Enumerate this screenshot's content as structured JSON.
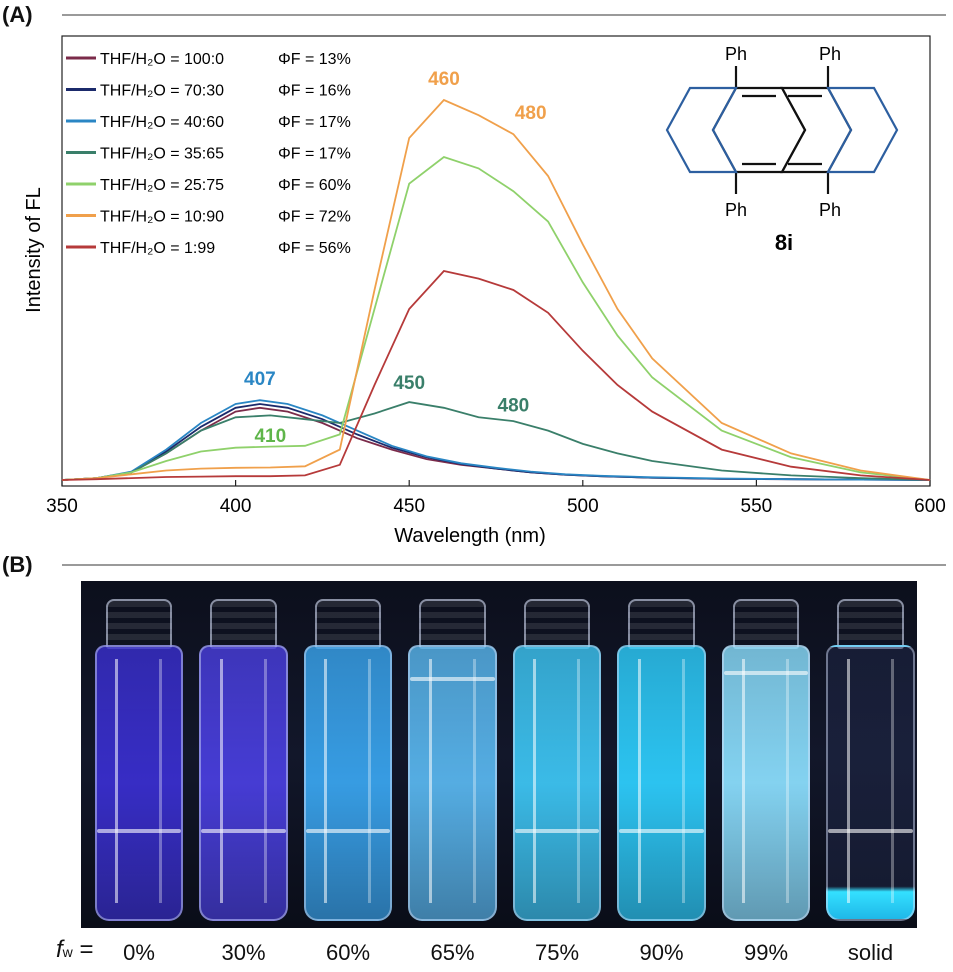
{
  "panel_a_label": "(A)",
  "panel_b_label": "(B)",
  "chart_data": {
    "type": "line",
    "xlabel": "Wavelength (nm)",
    "ylabel": "Intensity of FL",
    "xlim": [
      350,
      600
    ],
    "ylim": [
      0,
      1
    ],
    "x_ticks": [
      350,
      400,
      450,
      500,
      550,
      600
    ],
    "series": [
      {
        "name": "THF/H₂O = 100:0",
        "phi": "ΦF = 13%",
        "color": "#7b2b4a",
        "x": [
          350,
          360,
          370,
          380,
          390,
          400,
          407,
          415,
          425,
          435,
          445,
          455,
          465,
          475,
          485,
          495,
          505,
          520,
          540,
          560,
          580,
          600
        ],
        "y": [
          0.0,
          0.005,
          0.02,
          0.07,
          0.13,
          0.18,
          0.19,
          0.18,
          0.15,
          0.11,
          0.08,
          0.055,
          0.04,
          0.03,
          0.02,
          0.014,
          0.01,
          0.006,
          0.003,
          0.002,
          0.001,
          0.0
        ]
      },
      {
        "name": "THF/H₂O =  70:30",
        "phi": "ΦF = 16%",
        "color": "#1b2a6b",
        "x": [
          350,
          360,
          370,
          380,
          390,
          400,
          407,
          415,
          425,
          435,
          445,
          455,
          465,
          475,
          485,
          495,
          505,
          520,
          540,
          560,
          580,
          600
        ],
        "y": [
          0.0,
          0.005,
          0.02,
          0.075,
          0.14,
          0.19,
          0.2,
          0.19,
          0.16,
          0.12,
          0.085,
          0.06,
          0.042,
          0.03,
          0.02,
          0.014,
          0.01,
          0.006,
          0.003,
          0.002,
          0.001,
          0.0
        ]
      },
      {
        "name": "THF/H₂O =  40:60",
        "phi": "ΦF = 17%",
        "color": "#2a86c4",
        "x": [
          350,
          360,
          370,
          380,
          390,
          400,
          407,
          415,
          425,
          435,
          445,
          455,
          465,
          475,
          485,
          495,
          505,
          520,
          540,
          560,
          580,
          600
        ],
        "y": [
          0.0,
          0.005,
          0.022,
          0.08,
          0.15,
          0.2,
          0.21,
          0.2,
          0.17,
          0.13,
          0.09,
          0.062,
          0.044,
          0.032,
          0.022,
          0.015,
          0.011,
          0.007,
          0.004,
          0.002,
          0.001,
          0.0
        ]
      },
      {
        "name": "THF/H₂O =  35:65",
        "phi": "ΦF = 17%",
        "color": "#3a7f6a",
        "x": [
          350,
          360,
          370,
          380,
          390,
          400,
          410,
          420,
          430,
          440,
          450,
          460,
          470,
          480,
          490,
          500,
          510,
          520,
          540,
          560,
          580,
          600
        ],
        "y": [
          0.0,
          0.005,
          0.02,
          0.07,
          0.13,
          0.165,
          0.17,
          0.16,
          0.15,
          0.175,
          0.205,
          0.19,
          0.165,
          0.155,
          0.13,
          0.095,
          0.07,
          0.05,
          0.025,
          0.012,
          0.005,
          0.0
        ]
      },
      {
        "name": "THF/H₂O =  25:75",
        "phi": "ΦF = 60%",
        "color": "#8fd16b",
        "x": [
          350,
          360,
          370,
          380,
          390,
          400,
          410,
          420,
          430,
          440,
          450,
          460,
          470,
          480,
          490,
          500,
          510,
          520,
          540,
          560,
          580,
          600
        ],
        "y": [
          0.0,
          0.005,
          0.02,
          0.05,
          0.075,
          0.085,
          0.088,
          0.09,
          0.12,
          0.45,
          0.78,
          0.85,
          0.82,
          0.76,
          0.68,
          0.52,
          0.38,
          0.27,
          0.13,
          0.06,
          0.02,
          0.0
        ]
      },
      {
        "name": "THF/H₂O =  10:90",
        "phi": "ΦF = 72%",
        "color": "#f0a04b",
        "x": [
          350,
          360,
          370,
          380,
          390,
          400,
          410,
          420,
          430,
          440,
          450,
          460,
          470,
          480,
          490,
          500,
          510,
          520,
          540,
          560,
          580,
          600
        ],
        "y": [
          0.0,
          0.005,
          0.015,
          0.025,
          0.03,
          0.032,
          0.033,
          0.036,
          0.08,
          0.5,
          0.9,
          1.0,
          0.96,
          0.91,
          0.8,
          0.62,
          0.45,
          0.32,
          0.15,
          0.07,
          0.025,
          0.0
        ]
      },
      {
        "name": "THF/H₂O =    1:99",
        "phi": "ΦF = 56%",
        "color": "#b63a3a",
        "x": [
          350,
          360,
          370,
          380,
          390,
          400,
          410,
          420,
          430,
          440,
          450,
          460,
          470,
          480,
          490,
          500,
          510,
          520,
          540,
          560,
          580,
          600
        ],
        "y": [
          0.0,
          0.002,
          0.005,
          0.008,
          0.009,
          0.01,
          0.01,
          0.012,
          0.04,
          0.25,
          0.45,
          0.55,
          0.53,
          0.5,
          0.44,
          0.34,
          0.25,
          0.18,
          0.08,
          0.035,
          0.012,
          0.0
        ]
      }
    ],
    "annotations": [
      {
        "text": "407",
        "x": 407,
        "y": 0.25,
        "color": "#2a86c4"
      },
      {
        "text": "410",
        "x": 410,
        "y": 0.1,
        "color": "#5fb54a"
      },
      {
        "text": "450",
        "x": 450,
        "y": 0.24,
        "color": "#3a7f6a"
      },
      {
        "text": "480",
        "x": 480,
        "y": 0.18,
        "color": "#3a7f6a"
      },
      {
        "text": "460",
        "x": 460,
        "y": 1.04,
        "color": "#f0a04b"
      },
      {
        "text": "480",
        "x": 485,
        "y": 0.95,
        "color": "#f0a04b"
      }
    ]
  },
  "molecule": {
    "label": "8i",
    "substituent": "Ph",
    "ring_color": "#2d5fa0"
  },
  "vials": {
    "fw_label": "f",
    "fw_sub": "w",
    "fw_eq": " =",
    "labels": [
      "0%",
      "30%",
      "60%",
      "65%",
      "75%",
      "90%",
      "99%",
      "solid"
    ],
    "glow_colors": [
      "#3a2fd0",
      "#4a3fe0",
      "#3aa6f0",
      "#5ab8f0",
      "#3ec7f5",
      "#2ed0ff",
      "#8ce0ff",
      "#1a1f40"
    ]
  }
}
